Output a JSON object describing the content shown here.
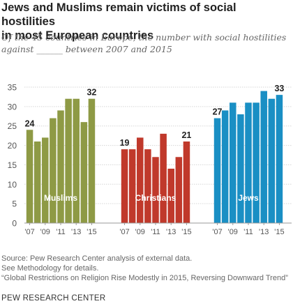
{
  "title_line1": "Jews and Muslims remain victims of social hostilities",
  "title_line2": "in most European countries",
  "subtitle_line1": "Of the 45 countries in Europe, the number with social hostilities",
  "subtitle_line2": "against ______ between 2007 and 2015",
  "footer": {
    "source": "Source: Pew Research Center analysis of external data.",
    "methodology": "See Methodology for details.",
    "report": "“Global Restrictions on Religion Rise Modestly in 2015, Reversing Downward Trend”"
  },
  "brand": "PEW RESEARCH CENTER",
  "chart_data": {
    "type": "bar",
    "x": [
      2007,
      2008,
      2009,
      2010,
      2011,
      2012,
      2013,
      2014,
      2015
    ],
    "xtick_labels": [
      "'07",
      "'09",
      "'11",
      "'13",
      "'15"
    ],
    "yticks": [
      0,
      5,
      10,
      15,
      20,
      25,
      30,
      35
    ],
    "ylim": [
      0,
      35
    ],
    "grid": true,
    "series": [
      {
        "name": "Muslims",
        "color": "#8e9a45",
        "values": [
          24,
          21,
          22,
          27,
          29,
          32,
          32,
          26,
          32
        ],
        "first_label": "24",
        "last_label": "32"
      },
      {
        "name": "Christians",
        "color": "#c0392b",
        "values": [
          19,
          19,
          22,
          19,
          17,
          23,
          14,
          17,
          21
        ],
        "first_label": "19",
        "last_label": "21"
      },
      {
        "name": "Jews",
        "color": "#1a8fc4",
        "values": [
          27,
          29,
          31,
          28,
          31,
          31,
          34,
          32,
          33
        ],
        "first_label": "27",
        "last_label": "33"
      }
    ]
  }
}
